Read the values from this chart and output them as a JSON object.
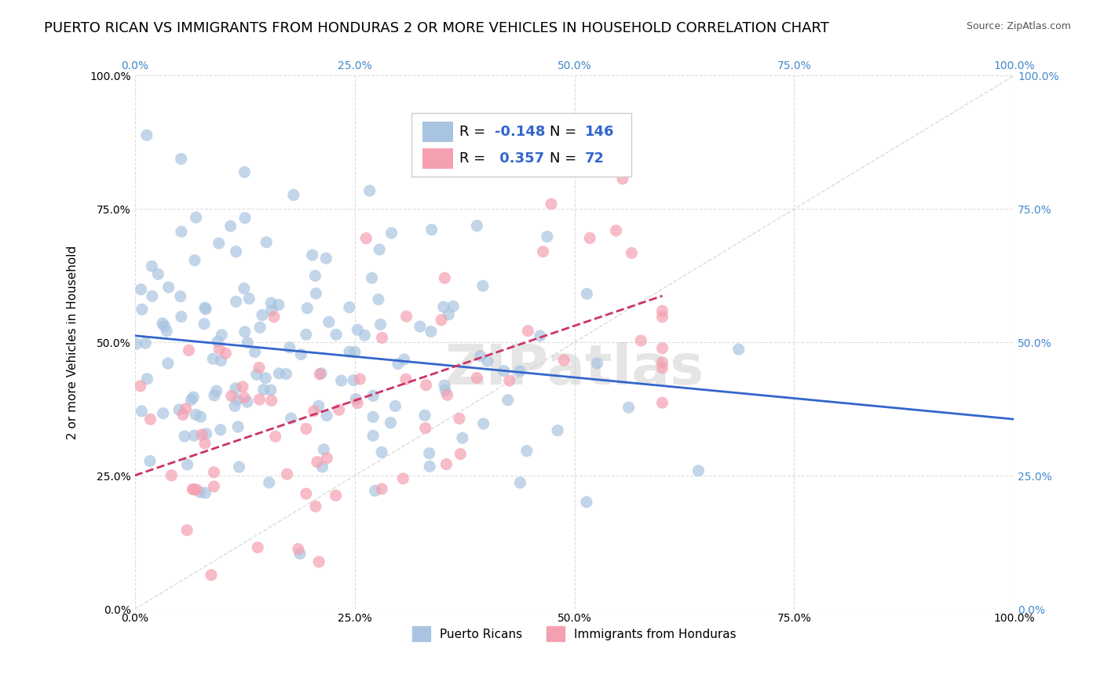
{
  "title": "PUERTO RICAN VS IMMIGRANTS FROM HONDURAS 2 OR MORE VEHICLES IN HOUSEHOLD CORRELATION CHART",
  "source": "Source: ZipAtlas.com",
  "ylabel": "2 or more Vehicles in Household",
  "xlabel": "",
  "xlim": [
    0.0,
    1.0
  ],
  "ylim": [
    0.0,
    1.0
  ],
  "xticks": [
    0.0,
    0.25,
    0.5,
    0.75,
    1.0
  ],
  "yticks": [
    0.0,
    0.25,
    0.5,
    0.75,
    1.0
  ],
  "xtick_labels": [
    "0.0%",
    "25.0%",
    "50.0%",
    "75.0%",
    "100.0%"
  ],
  "ytick_labels": [
    "0.0%",
    "25.0%",
    "50.0%",
    "75.0%",
    "100.0%"
  ],
  "blue_color": "#a8c4e0",
  "pink_color": "#f4a0b0",
  "blue_line_color": "#3366cc",
  "pink_line_color": "#cc3366",
  "R_blue": -0.148,
  "N_blue": 146,
  "R_pink": 0.357,
  "N_pink": 72,
  "watermark": "ZIPatlas",
  "watermark_color": "#cccccc",
  "legend_labels": [
    "Puerto Ricans",
    "Immigrants from Honduras"
  ],
  "blue_seed": 42,
  "pink_seed": 123,
  "background_color": "#ffffff",
  "grid_color": "#dddddd",
  "title_fontsize": 13,
  "axis_label_fontsize": 11,
  "tick_fontsize": 10,
  "legend_fontsize": 11,
  "right_tick_color": "#4488cc"
}
